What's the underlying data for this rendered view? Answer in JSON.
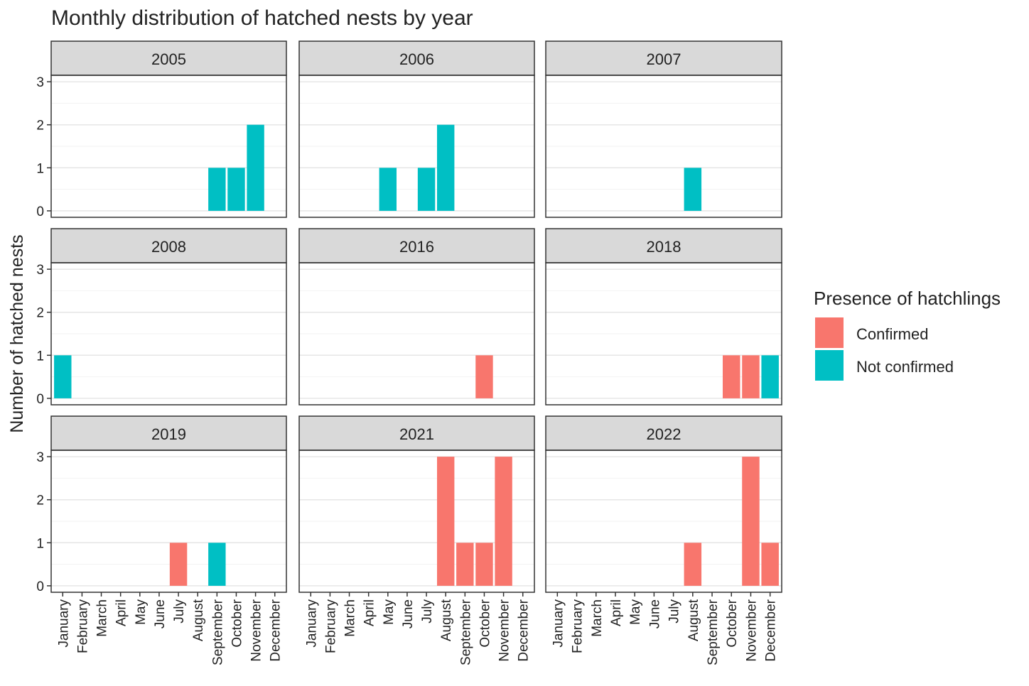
{
  "chart_data": {
    "type": "bar",
    "title": "Monthly distribution of hatched nests by year",
    "ylabel": "Number of hatched nests",
    "categories": [
      "January",
      "February",
      "March",
      "April",
      "May",
      "June",
      "July",
      "August",
      "September",
      "October",
      "November",
      "December"
    ],
    "legend_title": "Presence of hatchlings",
    "series": [
      {
        "name": "Confirmed",
        "color": "#F8766D"
      },
      {
        "name": "Not confirmed",
        "color": "#00BFC4"
      }
    ],
    "ylim": [
      -0.15,
      3.15
    ],
    "yticks": [
      0,
      1,
      2,
      3
    ],
    "grid": true,
    "panels": [
      {
        "title": "2005",
        "values": [
          [
            0,
            0,
            0,
            0,
            0,
            0,
            0,
            0,
            0,
            0,
            0,
            0
          ],
          [
            0,
            0,
            0,
            0,
            0,
            0,
            0,
            0,
            1,
            1,
            2,
            0
          ]
        ]
      },
      {
        "title": "2006",
        "values": [
          [
            0,
            0,
            0,
            0,
            0,
            0,
            0,
            0,
            0,
            0,
            0,
            0
          ],
          [
            0,
            0,
            0,
            0,
            1,
            0,
            1,
            2,
            0,
            0,
            0,
            0
          ]
        ]
      },
      {
        "title": "2007",
        "values": [
          [
            0,
            0,
            0,
            0,
            0,
            0,
            0,
            0,
            0,
            0,
            0,
            0
          ],
          [
            0,
            0,
            0,
            0,
            0,
            0,
            0,
            1,
            0,
            0,
            0,
            0
          ]
        ]
      },
      {
        "title": "2008",
        "values": [
          [
            0,
            0,
            0,
            0,
            0,
            0,
            0,
            0,
            0,
            0,
            0,
            0
          ],
          [
            1,
            0,
            0,
            0,
            0,
            0,
            0,
            0,
            0,
            0,
            0,
            0
          ]
        ]
      },
      {
        "title": "2016",
        "values": [
          [
            0,
            0,
            0,
            0,
            0,
            0,
            0,
            0,
            0,
            1,
            0,
            0
          ],
          [
            0,
            0,
            0,
            0,
            0,
            0,
            0,
            0,
            0,
            0,
            0,
            0
          ]
        ]
      },
      {
        "title": "2018",
        "values": [
          [
            0,
            0,
            0,
            0,
            0,
            0,
            0,
            0,
            0,
            1,
            1,
            0
          ],
          [
            0,
            0,
            0,
            0,
            0,
            0,
            0,
            0,
            0,
            0,
            0,
            1
          ]
        ]
      },
      {
        "title": "2019",
        "values": [
          [
            0,
            0,
            0,
            0,
            0,
            0,
            1,
            0,
            0,
            0,
            0,
            0
          ],
          [
            0,
            0,
            0,
            0,
            0,
            0,
            0,
            0,
            1,
            0,
            0,
            0
          ]
        ]
      },
      {
        "title": "2021",
        "values": [
          [
            0,
            0,
            0,
            0,
            0,
            0,
            0,
            3,
            1,
            1,
            3,
            0
          ],
          [
            0,
            0,
            0,
            0,
            0,
            0,
            0,
            0,
            0,
            0,
            0,
            0
          ]
        ]
      },
      {
        "title": "2022",
        "values": [
          [
            0,
            0,
            0,
            0,
            0,
            0,
            0,
            1,
            0,
            0,
            3,
            1
          ],
          [
            0,
            0,
            0,
            0,
            0,
            0,
            0,
            0,
            0,
            0,
            0,
            0
          ]
        ]
      }
    ]
  }
}
